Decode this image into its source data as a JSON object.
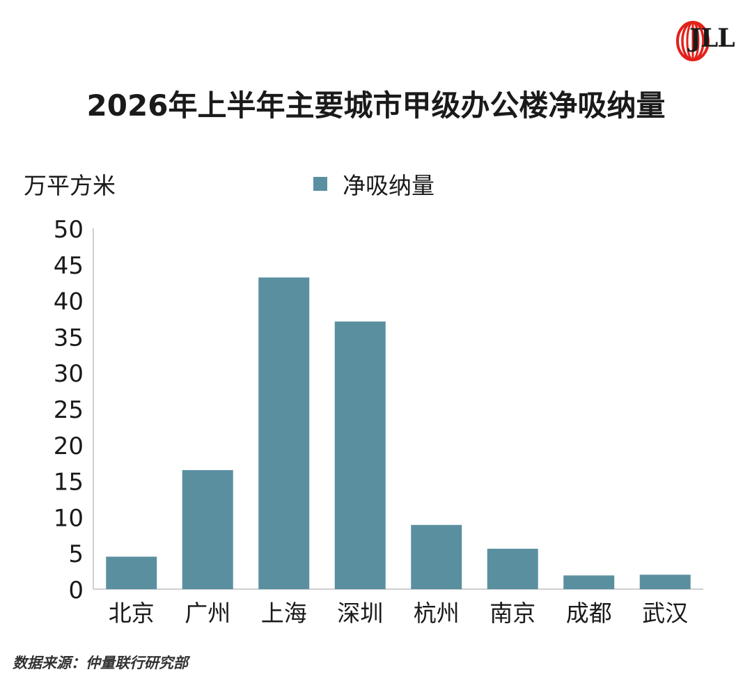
{
  "logo": {
    "text": "JLL",
    "icon": "jll-logo-icon",
    "brand_color": "#e32119"
  },
  "unit_label": "万平方米",
  "legend_label": "净吸纳量",
  "source": "数据来源：仲量联行研究部",
  "colors": {
    "bar": "#5a8fa0",
    "axis": "#bfbfbf"
  },
  "chart_data": {
    "type": "bar",
    "title": "2026年上半年主要城市甲级办公楼净吸纳量",
    "ylabel": "万平方米",
    "categories": [
      "北京",
      "广州",
      "上海",
      "深圳",
      "杭州",
      "南京",
      "成都",
      "武汉"
    ],
    "series": [
      {
        "name": "净吸纳量",
        "values": [
          4.5,
          16.5,
          43.2,
          37.1,
          8.9,
          5.6,
          1.9,
          2.0
        ]
      }
    ],
    "ylim": [
      0,
      50
    ],
    "yticks": [
      0,
      5,
      10,
      15,
      20,
      25,
      30,
      35,
      40,
      45,
      50
    ],
    "grid": false,
    "legend": "top"
  }
}
